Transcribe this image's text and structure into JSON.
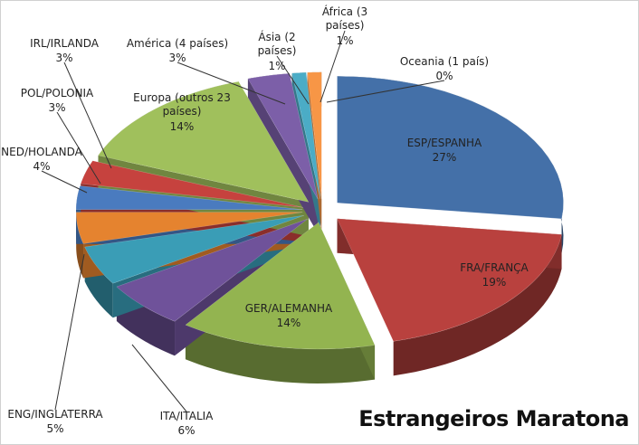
{
  "chart_data": {
    "type": "pie",
    "title": "Estrangeiros Maratona",
    "categories": [
      "ESP/ESPANHA",
      "FRA/FRANÇA",
      "GER/ALEMANHA",
      "ITA/ITALIA",
      "ENG/INGLATERRA",
      "NED/HOLANDA",
      "POL/POLONIA",
      "IRL/IRLANDA",
      "Europa (outros 23 países)",
      "América (4 países)",
      "Ásia (2 países)",
      "África (3 países)",
      "Oceania (1 país)"
    ],
    "values": [
      27,
      19,
      14,
      6,
      5,
      4,
      3,
      3,
      14,
      3,
      1,
      1,
      0
    ],
    "value_labels": [
      "27%",
      "19%",
      "14%",
      "6%",
      "5%",
      "4%",
      "3%",
      "3%",
      "14%",
      "3%",
      "1%",
      "1%",
      "0%"
    ],
    "colors": [
      "#4470a8",
      "#b9413e",
      "#93b450",
      "#6f529a",
      "#3a9db6",
      "#e5832f",
      "#4a7bbf",
      "#c6423e",
      "#a0c05c",
      "#7c5fa8",
      "#4bacc6",
      "#f79646",
      "#a9c4e4"
    ]
  }
}
